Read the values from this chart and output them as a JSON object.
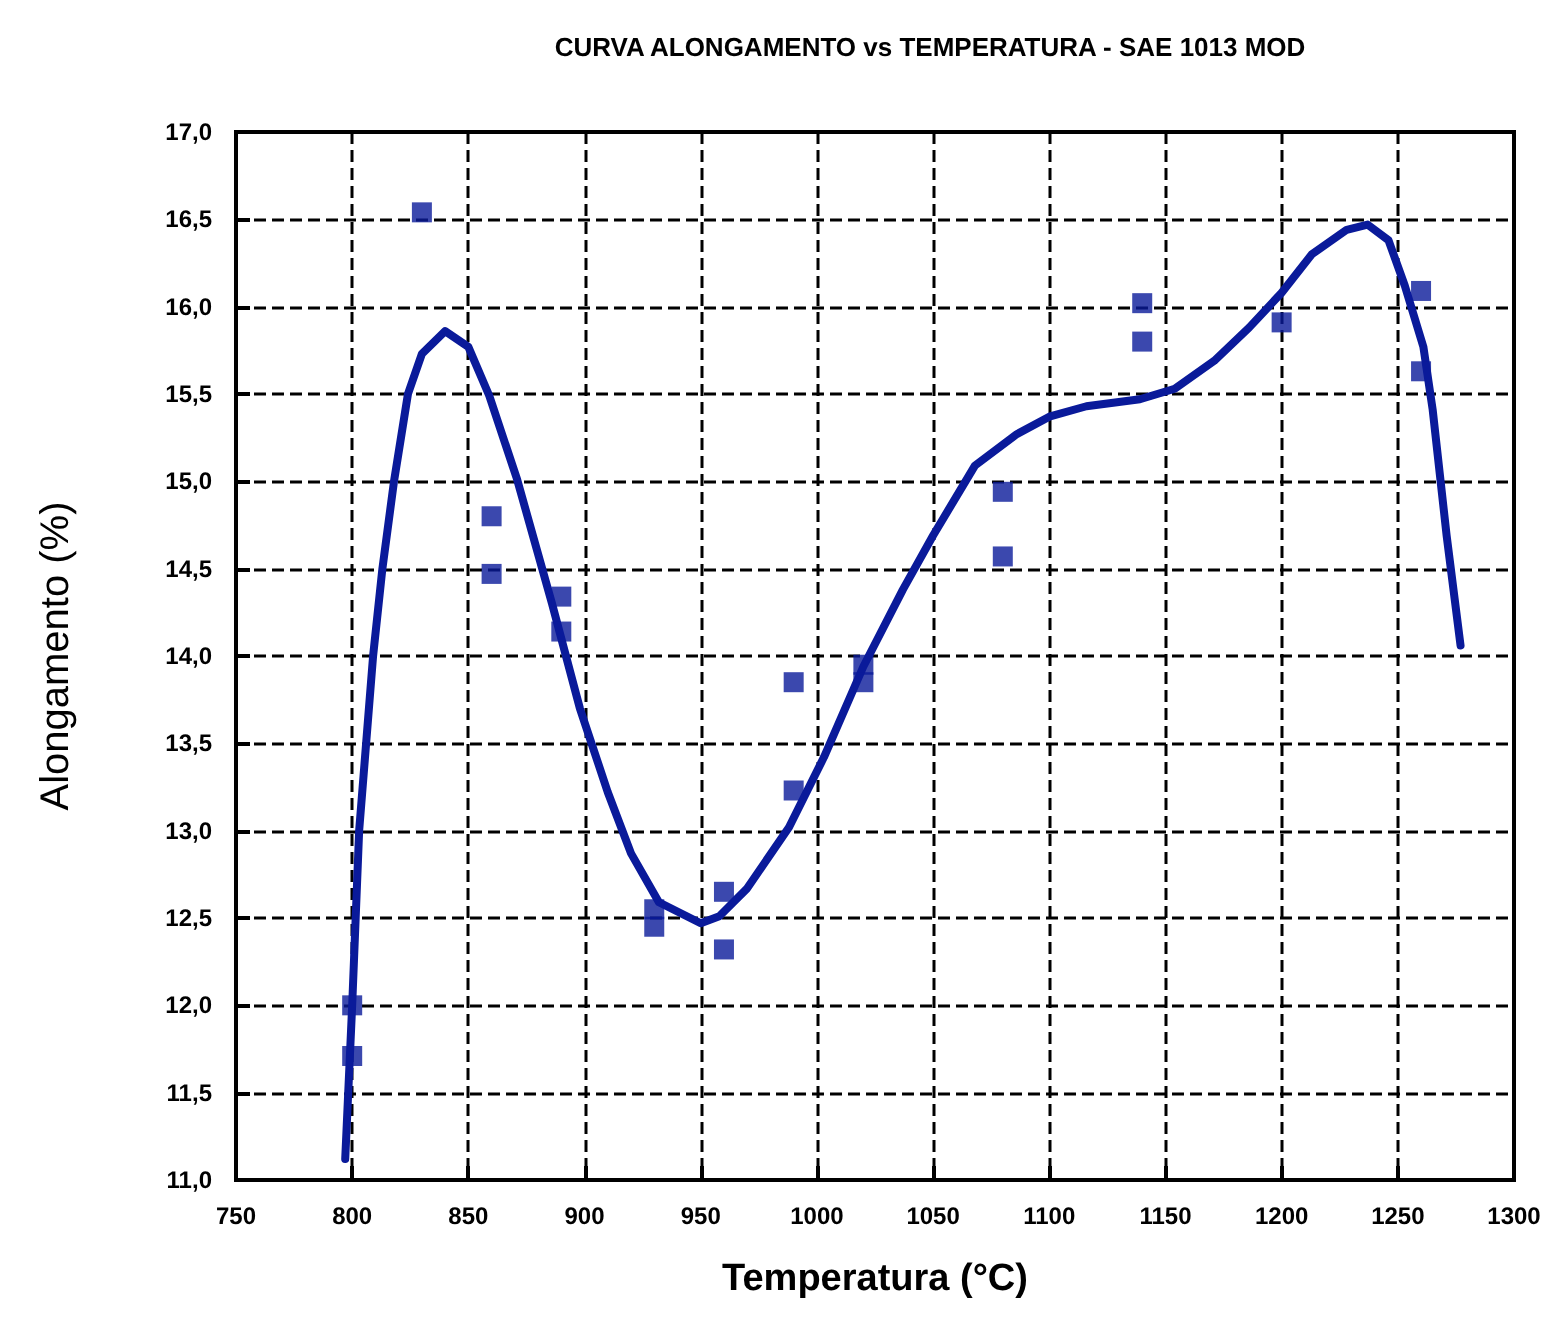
{
  "chart_data": {
    "type": "scatter",
    "title": "CURVA ALONGAMENTO vs TEMPERATURA - SAE 1013 MOD",
    "xlabel": "Temperatura (°C)",
    "ylabel": "Alongamento (%)",
    "xlim": [
      750,
      1300
    ],
    "xticks": [
      750,
      800,
      850,
      900,
      950,
      1000,
      1050,
      1100,
      1150,
      1200,
      1250,
      1300
    ],
    "ylim": [
      11,
      17
    ],
    "yticks": [
      {
        "value": 11,
        "label": "11,0"
      },
      {
        "value": 11.5,
        "label": "11,5"
      },
      {
        "value": 12,
        "label": "12,0"
      },
      {
        "value": 12.5,
        "label": "12,5"
      },
      {
        "value": 13,
        "label": "13,0"
      },
      {
        "value": 13.5,
        "label": "13,5"
      },
      {
        "value": 14,
        "label": "14,0"
      },
      {
        "value": 14.5,
        "label": "14,5"
      },
      {
        "value": 15,
        "label": "15,0"
      },
      {
        "value": 15.5,
        "label": "15,5"
      },
      {
        "value": 16,
        "label": "16,0"
      },
      {
        "value": 16.5,
        "label": "16,5"
      },
      {
        "value": 17,
        "label": "17,0"
      }
    ],
    "grid": true,
    "line_style": "dashed",
    "series": [
      {
        "marker": "square",
        "color": "#0a1a9a",
        "x": [
          800,
          800,
          830,
          860,
          860,
          890,
          890,
          930,
          930,
          960,
          960,
          990,
          990,
          1020,
          1020,
          1080,
          1080,
          1140,
          1140,
          1200,
          1260,
          1260
        ],
        "values": [
          12.0,
          11.71,
          16.54,
          14.8,
          14.47,
          14.34,
          14.14,
          12.55,
          12.45,
          12.65,
          12.32,
          13.85,
          13.23,
          13.95,
          13.85,
          14.94,
          14.57,
          16.02,
          15.8,
          15.91,
          16.09,
          15.63
        ]
      },
      {
        "type": "line",
        "marker": "none",
        "line_style": "solid",
        "color": "#0a1a9a",
        "x": [
          797,
          800,
          803,
          809,
          813,
          818,
          824,
          830,
          840,
          850,
          859,
          871,
          886,
          898,
          910,
          920,
          932,
          950,
          958,
          970,
          988,
          1003,
          1020,
          1037,
          1050,
          1068,
          1086,
          1100,
          1116,
          1139,
          1154,
          1171,
          1186,
          1200,
          1213,
          1228,
          1237,
          1246,
          1253,
          1261,
          1265,
          1271,
          1277
        ],
        "values": [
          11.12,
          12.0,
          13.0,
          14.0,
          14.5,
          15.0,
          15.5,
          15.73,
          15.86,
          15.77,
          15.49,
          15.01,
          14.3,
          13.7,
          13.22,
          12.87,
          12.59,
          12.47,
          12.51,
          12.67,
          13.02,
          13.42,
          13.94,
          14.38,
          14.69,
          15.09,
          15.27,
          15.37,
          15.43,
          15.47,
          15.53,
          15.69,
          15.88,
          16.08,
          16.3,
          16.44,
          16.47,
          16.38,
          16.12,
          15.77,
          15.41,
          14.69,
          14.06
        ]
      }
    ]
  }
}
